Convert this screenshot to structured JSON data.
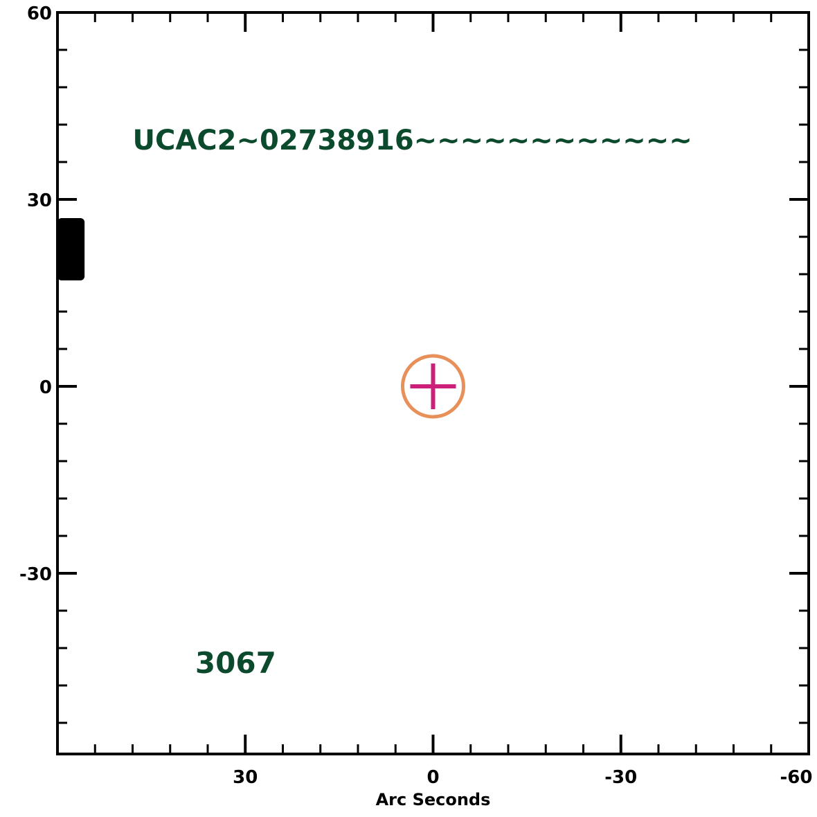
{
  "chart_data": {
    "type": "scatter",
    "xlabel": "Arc Seconds",
    "ylabel": "",
    "xlim": [
      60,
      -60
    ],
    "ylim": [
      -59,
      60
    ],
    "x_ticks": [
      {
        "value": 30,
        "label": "30"
      },
      {
        "value": 0,
        "label": "0"
      },
      {
        "value": -30,
        "label": "-30"
      },
      {
        "value": -60,
        "label": "-60"
      }
    ],
    "y_ticks": [
      {
        "value": 60,
        "label": "60"
      },
      {
        "value": 30,
        "label": "30"
      },
      {
        "value": 0,
        "label": "0"
      },
      {
        "value": -30,
        "label": "-30"
      }
    ],
    "x_minor_step": 6,
    "y_minor_step": 6,
    "points": [
      {
        "x": 0,
        "y": 0,
        "marker": "cross",
        "color": "#cc1f7a"
      },
      {
        "x": 0,
        "y": 0,
        "marker": "circle",
        "color": "#e8905a"
      }
    ],
    "source_blob": {
      "x": 57,
      "y": 22,
      "color": "#000000"
    },
    "annotations": [
      {
        "text": "UCAC2~02738916~~~~~~~~~~~~",
        "x": 48,
        "y": 38,
        "color": "#0b4a2c"
      },
      {
        "text": "3067",
        "x": 38,
        "y": -46,
        "color": "#0b4a2c"
      }
    ]
  }
}
